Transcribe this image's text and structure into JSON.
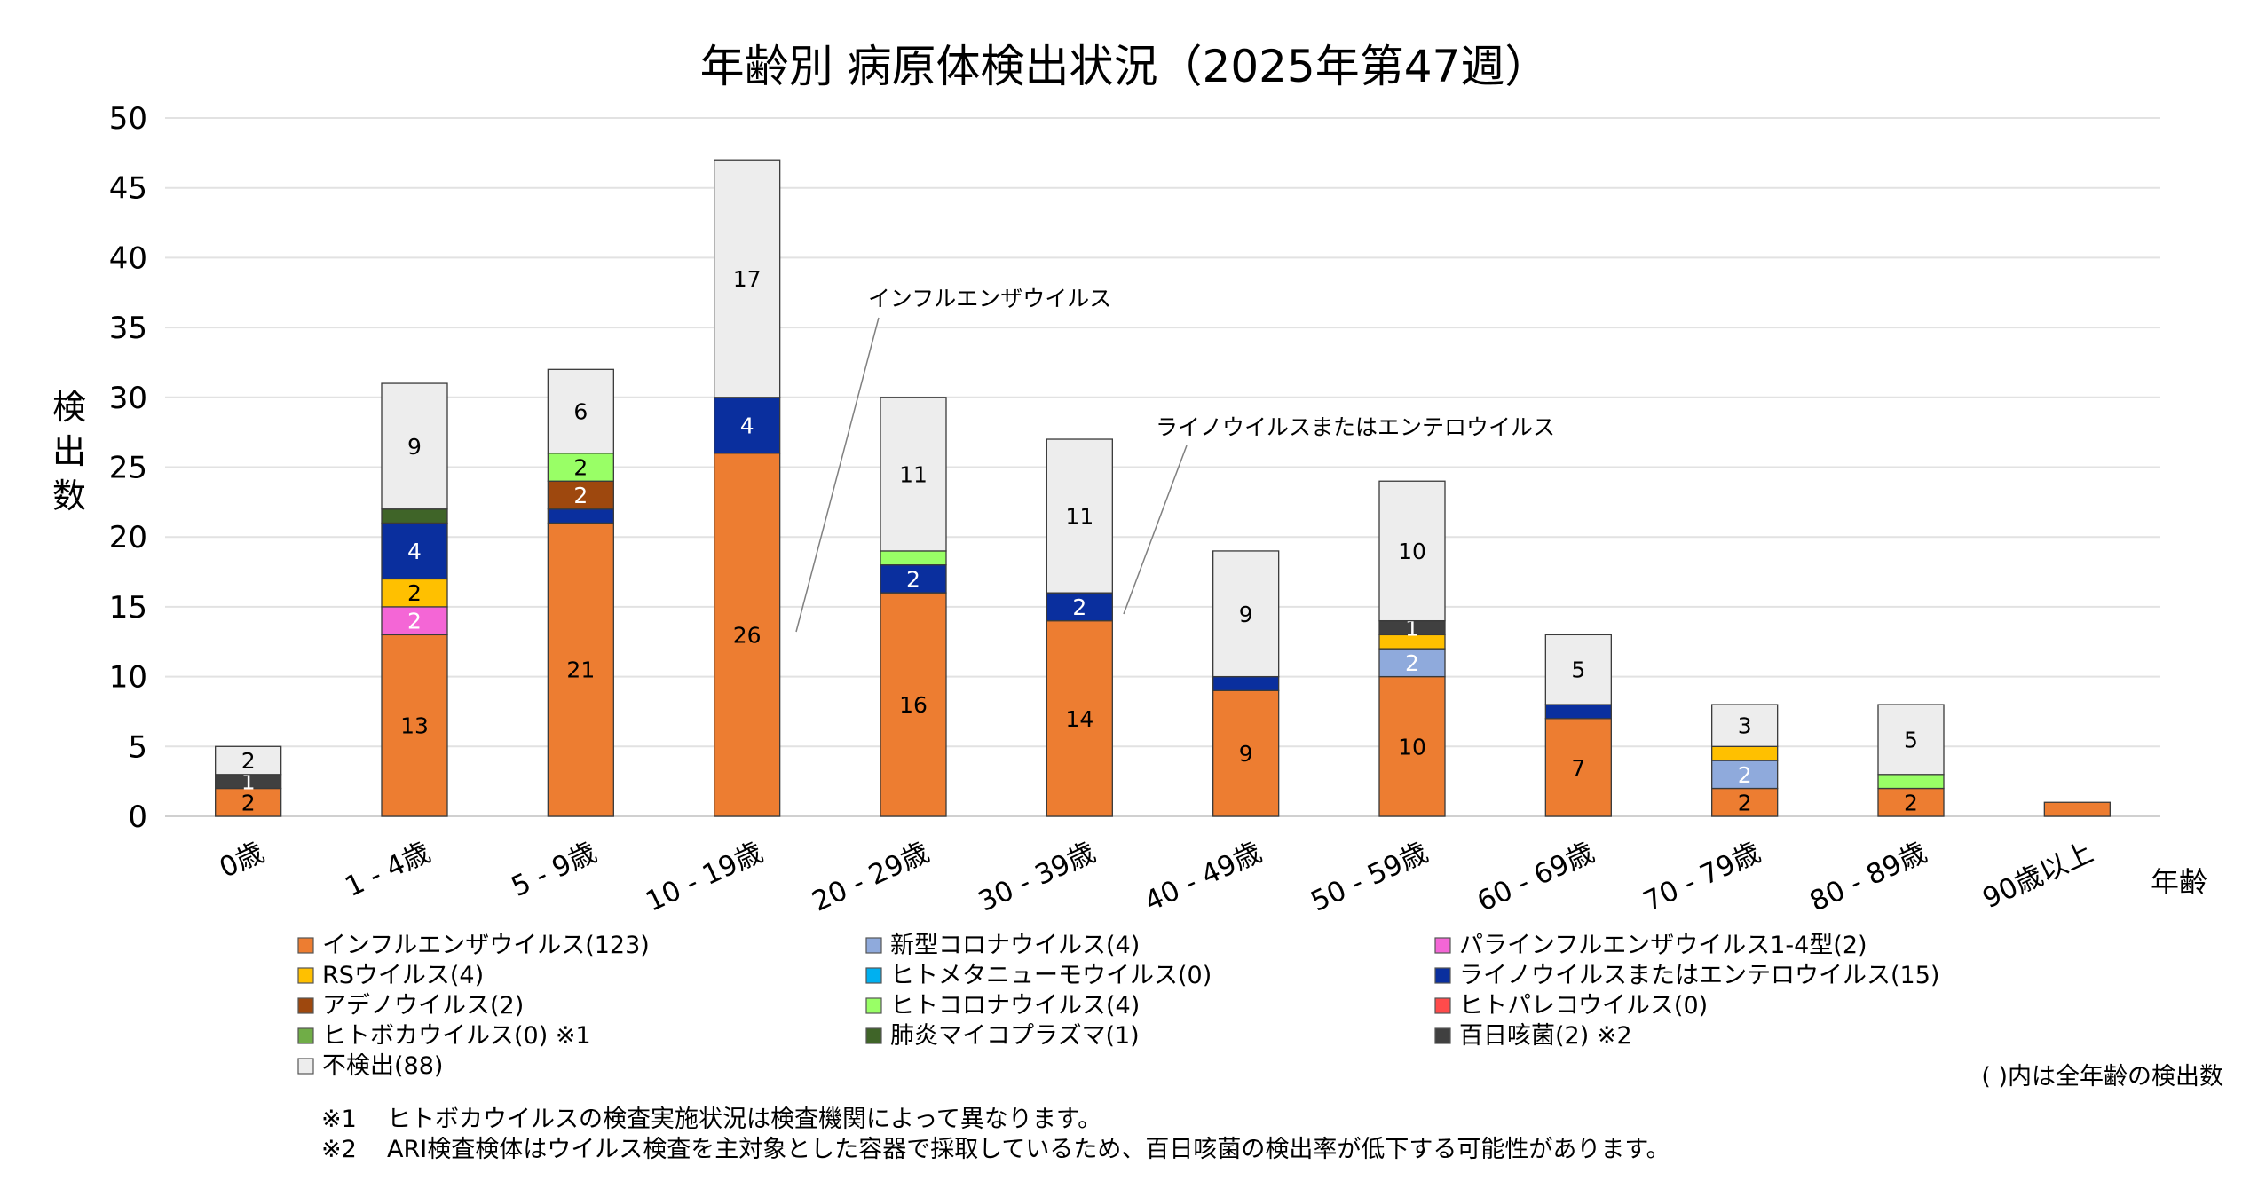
{
  "chart_data": {
    "type": "bar",
    "stacked": true,
    "title": "年齢別 病原体検出状況（2025年第47週）",
    "ylabel": "検出数",
    "xlabel": "年齢",
    "ylim": [
      0,
      50
    ],
    "yticks": [
      0,
      5,
      10,
      15,
      20,
      25,
      30,
      35,
      40,
      45,
      50
    ],
    "grid": true,
    "categories": [
      "0歳",
      "1 - 4歳",
      "5 - 9歳",
      "10 - 19歳",
      "20 - 29歳",
      "30 - 39歳",
      "40 - 49歳",
      "50 - 59歳",
      "60 - 69歳",
      "70 - 79歳",
      "80 - 89歳",
      "90歳以上"
    ],
    "series": [
      {
        "name": "インフルエンザウイルス",
        "legend": "インフルエンザウイルス(123)",
        "color": "#ED7D31",
        "label_color": "#000000",
        "values": [
          2,
          13,
          21,
          26,
          16,
          14,
          9,
          10,
          7,
          2,
          2,
          1
        ]
      },
      {
        "name": "新型コロナウイルス",
        "legend": "新型コロナウイルス(4)",
        "color": "#8FAADC",
        "label_color": "#ffffff",
        "values": [
          0,
          0,
          0,
          0,
          0,
          0,
          0,
          2,
          0,
          2,
          0,
          0
        ]
      },
      {
        "name": "パラインフルエンザウイルス1-4型",
        "legend": "パラインフルエンザウイルス1-4型(2)",
        "color": "#F466D6",
        "label_color": "#ffffff",
        "values": [
          0,
          2,
          0,
          0,
          0,
          0,
          0,
          0,
          0,
          0,
          0,
          0
        ]
      },
      {
        "name": "RSウイルス",
        "legend": "RSウイルス(4)",
        "color": "#FFC000",
        "label_color": "#000000",
        "values": [
          0,
          2,
          0,
          0,
          0,
          0,
          0,
          1,
          0,
          1,
          0,
          0
        ]
      },
      {
        "name": "ヒトメタニューモウイルス",
        "legend": "ヒトメタニューモウイルス(0)",
        "color": "#00B0F0",
        "label_color": "#ffffff",
        "values": [
          0,
          0,
          0,
          0,
          0,
          0,
          0,
          0,
          0,
          0,
          0,
          0
        ]
      },
      {
        "name": "ライノウイルスまたはエンテロウイルス",
        "legend": "ライノウイルスまたはエンテロウイルス(15)",
        "color": "#0A2F9E",
        "label_color": "#ffffff",
        "values": [
          0,
          4,
          1,
          4,
          2,
          2,
          1,
          0,
          1,
          0,
          0,
          0
        ]
      },
      {
        "name": "アデノウイルス",
        "legend": "アデノウイルス(2)",
        "color": "#9E480E",
        "label_color": "#ffffff",
        "values": [
          0,
          0,
          2,
          0,
          0,
          0,
          0,
          0,
          0,
          0,
          0,
          0
        ]
      },
      {
        "name": "ヒトコロナウイルス",
        "legend": "ヒトコロナウイルス(4)",
        "color": "#99FF66",
        "label_color": "#000000",
        "values": [
          0,
          0,
          2,
          0,
          1,
          0,
          0,
          0,
          0,
          0,
          1,
          0
        ]
      },
      {
        "name": "ヒトパレコウイルス",
        "legend": "ヒトパレコウイルス(0)",
        "color": "#FF4B4B",
        "label_color": "#ffffff",
        "values": [
          0,
          0,
          0,
          0,
          0,
          0,
          0,
          0,
          0,
          0,
          0,
          0
        ]
      },
      {
        "name": "ヒトボカウイルス",
        "legend": "ヒトボカウイルス(0) ※1",
        "color": "#70AD47",
        "label_color": "#ffffff",
        "values": [
          0,
          0,
          0,
          0,
          0,
          0,
          0,
          0,
          0,
          0,
          0,
          0
        ]
      },
      {
        "name": "肺炎マイコプラズマ",
        "legend": "肺炎マイコプラズマ(1)",
        "color": "#3F6428",
        "label_color": "#ffffff",
        "values": [
          0,
          1,
          0,
          0,
          0,
          0,
          0,
          0,
          0,
          0,
          0,
          0
        ]
      },
      {
        "name": "百日咳菌",
        "legend": "百日咳菌(2) ※2",
        "color": "#404040",
        "label_color": "#ffffff",
        "values": [
          1,
          0,
          0,
          0,
          0,
          0,
          0,
          1,
          0,
          0,
          0,
          0
        ]
      },
      {
        "name": "不検出",
        "legend": "不検出(88)",
        "color": "#EDEDED",
        "label_color": "#000000",
        "values": [
          2,
          9,
          6,
          17,
          11,
          11,
          9,
          10,
          5,
          3,
          5,
          0
        ]
      }
    ],
    "annotations": [
      {
        "text": "インフルエンザウイルス",
        "category": "10 - 19歳",
        "series": "インフルエンザウイルス"
      },
      {
        "text": "ライノウイルスまたはエンテロウイルス",
        "category": "30 - 39歳",
        "series": "ライノウイルスまたはエンテロウイルス"
      }
    ],
    "legend_position": "bottom",
    "legend_note": "( )内は全年齢の検出数"
  },
  "footnotes": [
    {
      "mark": "※1",
      "text": "ヒトボカウイルスの検査実施状況は検査機関によって異なります。"
    },
    {
      "mark": "※2",
      "text": "ARI検査検体はウイルス検査を主対象とした容器で採取しているため、百日咳菌の検出率が低下する可能性があります。"
    }
  ]
}
